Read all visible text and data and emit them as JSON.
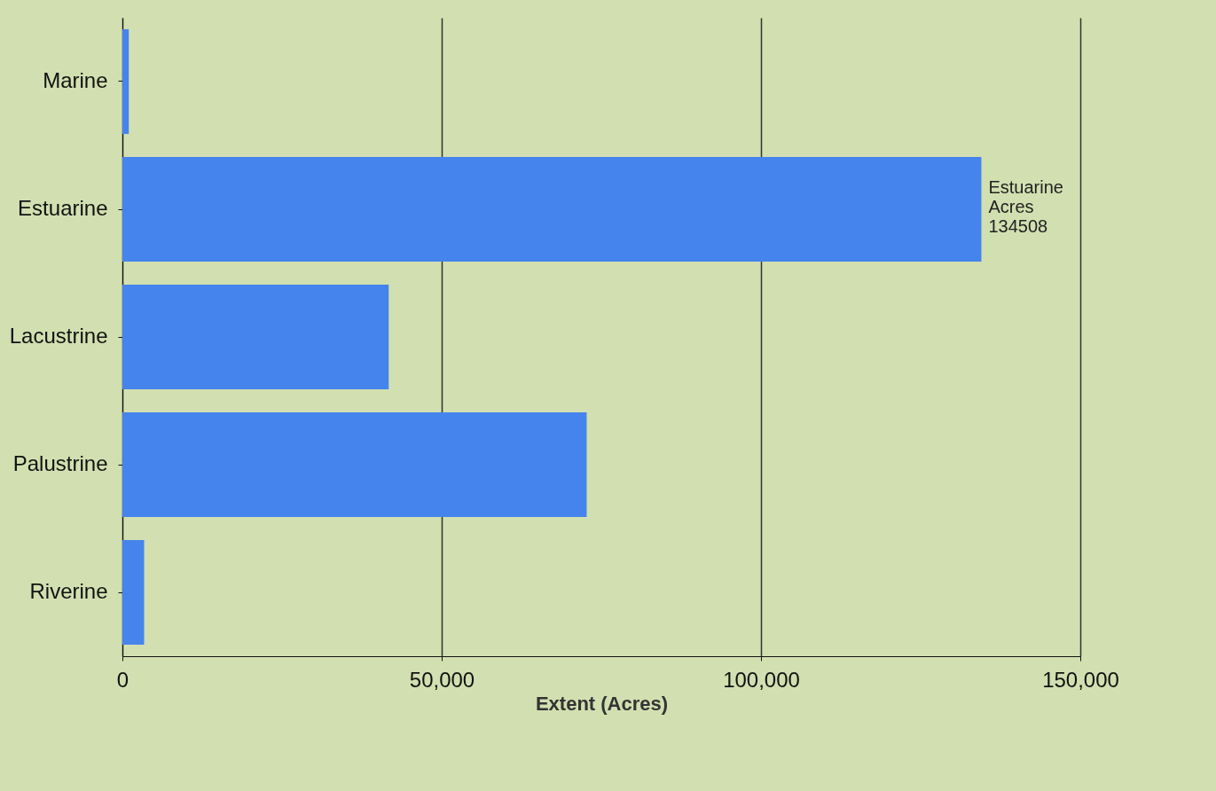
{
  "chart_data": {
    "type": "bar",
    "orientation": "horizontal",
    "xlabel": "Extent (Acres)",
    "categories": [
      "Marine",
      "Estuarine",
      "Lacustrine",
      "Palustrine",
      "Riverine"
    ],
    "values": [
      1000,
      134508,
      41700,
      72700,
      3400
    ],
    "color": "#4584ec",
    "xlim": [
      0,
      150000
    ],
    "xticks": [
      0,
      {
        "value": 50000,
        "label": "50,000"
      },
      {
        "value": 100000,
        "label": "100,000"
      },
      {
        "value": 150000,
        "label": "150,000"
      }
    ],
    "grid": "x",
    "annotations": [
      {
        "text": "Estuarine\nAcres\n134508",
        "x": 134508,
        "y": "Estuarine"
      }
    ]
  }
}
